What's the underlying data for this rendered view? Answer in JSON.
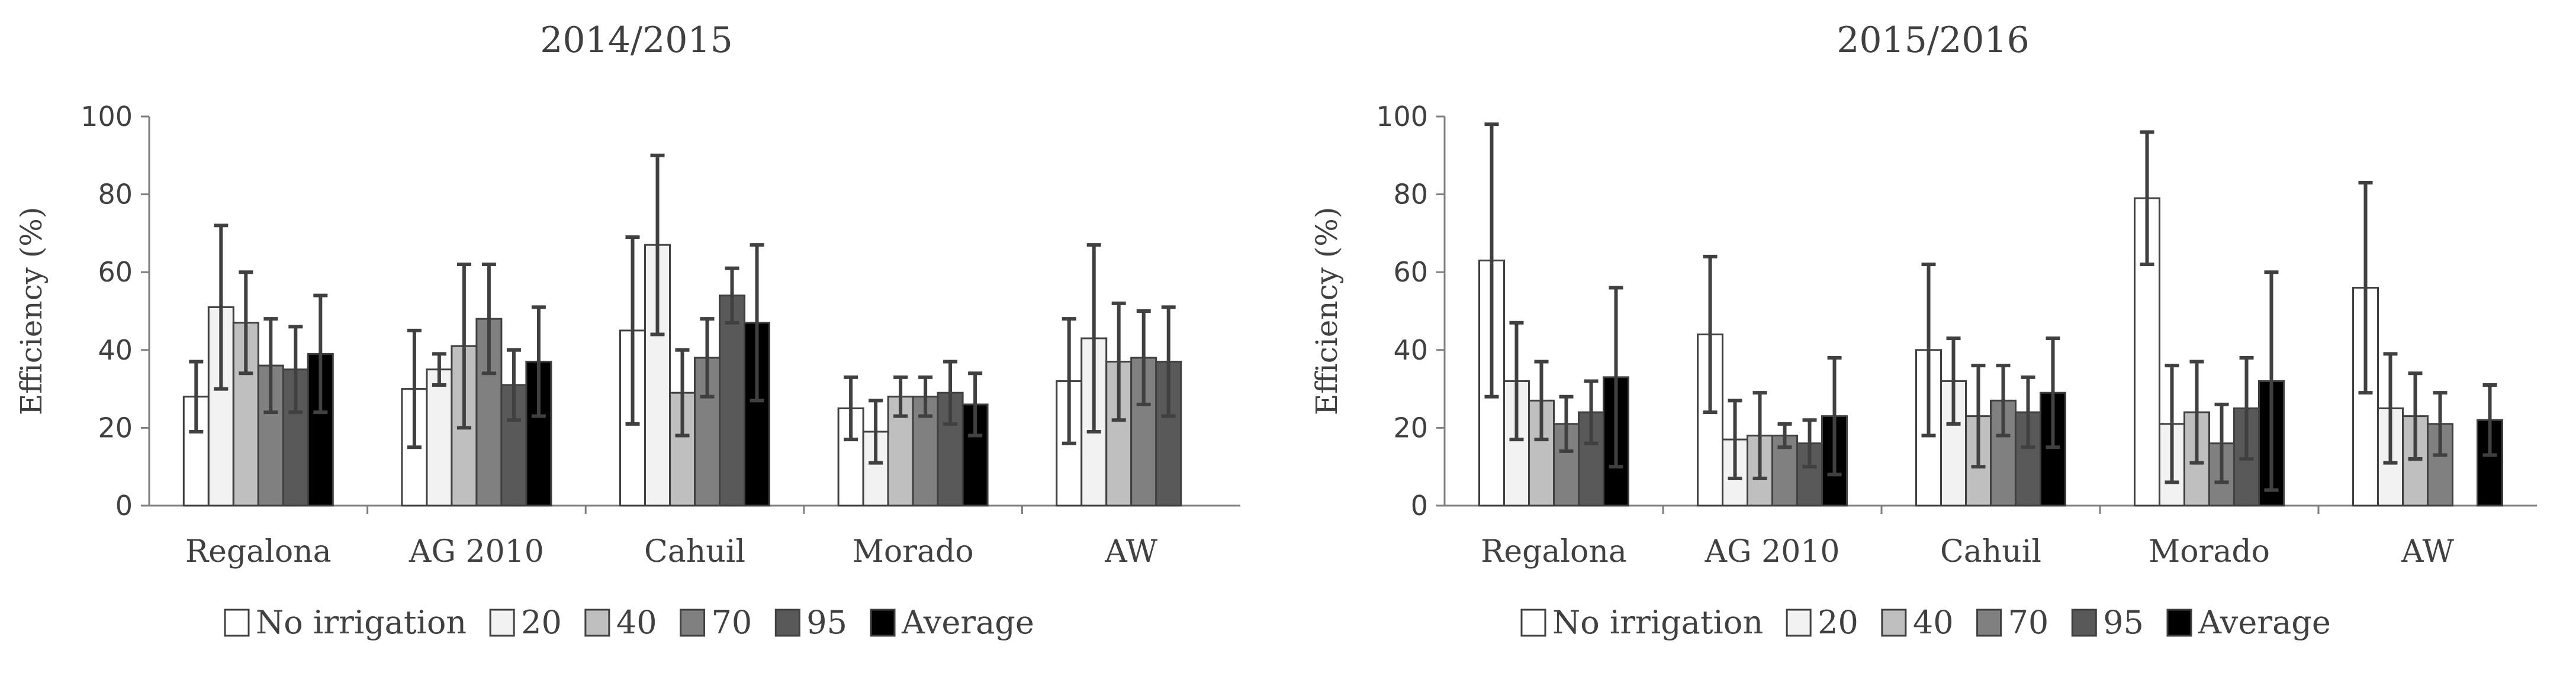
{
  "chart_data": [
    {
      "type": "bar",
      "title": "2014/2015",
      "ylabel": "Efficiency  (%)",
      "xlabel": "",
      "ylim": [
        0,
        100
      ],
      "yticks": [
        "0",
        "20",
        "40",
        "60",
        "80",
        "100"
      ],
      "categories": [
        "Regalona",
        "AG 2010",
        "Cahuil",
        "Morado",
        "AW"
      ],
      "series": [
        {
          "name": "No irrigation",
          "color": "#ffffff",
          "values": [
            28,
            30,
            45,
            25,
            32
          ],
          "errors": [
            9,
            15,
            24,
            8,
            16
          ]
        },
        {
          "name": "20",
          "color": "#f2f2f2",
          "values": [
            51,
            35,
            67,
            19,
            43
          ],
          "errors": [
            21,
            4,
            23,
            8,
            24
          ]
        },
        {
          "name": "40",
          "color": "#bfbfbf",
          "values": [
            47,
            41,
            29,
            28,
            37
          ],
          "errors": [
            13,
            21,
            11,
            5,
            15
          ]
        },
        {
          "name": "70",
          "color": "#808080",
          "values": [
            36,
            48,
            38,
            28,
            38
          ],
          "errors": [
            12,
            14,
            10,
            5,
            12
          ]
        },
        {
          "name": "95",
          "color": "#595959",
          "values": [
            35,
            31,
            54,
            29,
            37
          ],
          "errors": [
            11,
            9,
            7,
            8,
            14
          ]
        },
        {
          "name": "Average",
          "color": "#000000",
          "values": [
            39,
            37,
            47,
            26,
            null
          ],
          "errors": [
            15,
            14,
            20,
            8,
            null
          ]
        }
      ]
    },
    {
      "type": "bar",
      "title": "2015/2016",
      "ylabel": "Efficiency  (%)",
      "xlabel": "",
      "ylim": [
        0,
        100
      ],
      "yticks": [
        "0",
        "20",
        "40",
        "60",
        "80",
        "100"
      ],
      "categories": [
        "Regalona",
        "AG 2010",
        "Cahuil",
        "Morado",
        "AW"
      ],
      "series": [
        {
          "name": "No irrigation",
          "color": "#ffffff",
          "values": [
            63,
            44,
            40,
            79,
            56
          ],
          "errors": [
            35,
            20,
            22,
            17,
            27
          ]
        },
        {
          "name": "20",
          "color": "#f2f2f2",
          "values": [
            32,
            17,
            32,
            21,
            25
          ],
          "errors": [
            15,
            10,
            11,
            15,
            14
          ]
        },
        {
          "name": "40",
          "color": "#bfbfbf",
          "values": [
            27,
            18,
            23,
            24,
            23
          ],
          "errors": [
            10,
            11,
            13,
            13,
            11
          ]
        },
        {
          "name": "70",
          "color": "#808080",
          "values": [
            21,
            18,
            27,
            16,
            21
          ],
          "errors": [
            7,
            3,
            9,
            10,
            8
          ]
        },
        {
          "name": "95",
          "color": "#595959",
          "values": [
            24,
            16,
            24,
            25,
            null
          ],
          "errors": [
            8,
            6,
            9,
            13,
            null
          ]
        },
        {
          "name": "Average",
          "color": "#000000",
          "values": [
            33,
            23,
            29,
            32,
            22
          ],
          "errors": [
            23,
            15,
            14,
            28,
            9
          ]
        }
      ]
    }
  ],
  "legend": {
    "items": [
      {
        "label": "No irrigation",
        "color": "#ffffff"
      },
      {
        "label": "20",
        "color": "#f2f2f2"
      },
      {
        "label": "40",
        "color": "#bfbfbf"
      },
      {
        "label": "70",
        "color": "#808080"
      },
      {
        "label": "95",
        "color": "#595959"
      },
      {
        "label": "Average",
        "color": "#000000"
      }
    ]
  }
}
